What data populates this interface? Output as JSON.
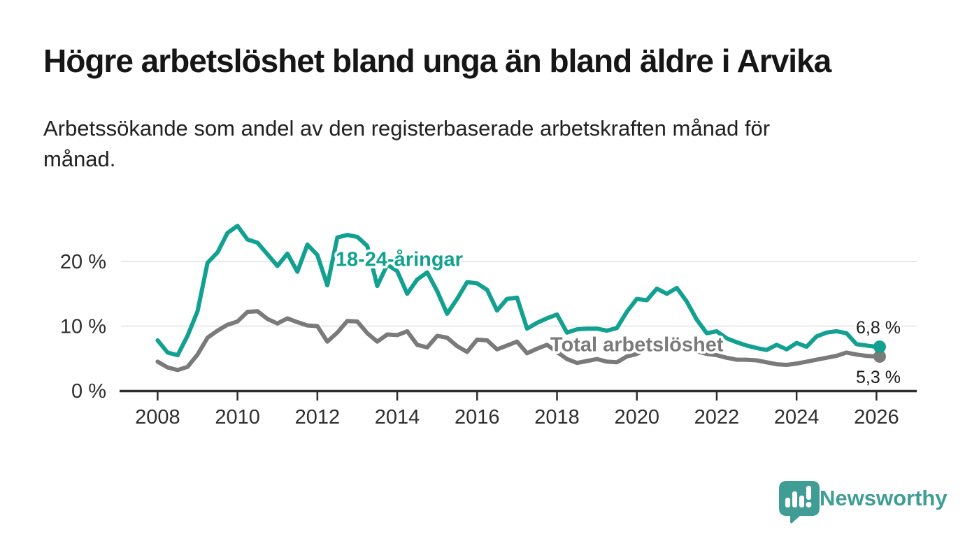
{
  "chart_data": {
    "type": "line",
    "title": "Högre arbetslöshet bland unga än bland äldre i Arvika",
    "subtitle_lines": [
      "Arbetssökande som andel av den registerbaserade arbetskraften månad för",
      "månad."
    ],
    "unit": "%",
    "x": {
      "start": 2008,
      "step": 0.25
    },
    "xlim": [
      2007.9,
      2027.0
    ],
    "ylim": [
      0,
      27
    ],
    "grid": "horizontal",
    "x_ticks": [
      {
        "value": 2008,
        "label": "2008"
      },
      {
        "value": 2010,
        "label": "2010"
      },
      {
        "value": 2012,
        "label": "2012"
      },
      {
        "value": 2014,
        "label": "2014"
      },
      {
        "value": 2016,
        "label": "2016"
      },
      {
        "value": 2018,
        "label": "2018"
      },
      {
        "value": 2020,
        "label": "2020"
      },
      {
        "value": 2022,
        "label": "2022"
      },
      {
        "value": 2024,
        "label": "2024"
      },
      {
        "value": 2026,
        "label": "2026"
      }
    ],
    "y_ticks": [
      {
        "value": 0,
        "label": "0 %"
      },
      {
        "value": 10,
        "label": "10 %"
      },
      {
        "value": 20,
        "label": "20 %"
      }
    ],
    "series": [
      {
        "name": "Total arbetslöshet",
        "color": "#7a7a7a",
        "end_t": 2026.08,
        "end_value": 5.3,
        "end_label": "5,3 %",
        "values": [
          4.5,
          3.6,
          3.2,
          3.7,
          5.6,
          8.2,
          9.3,
          10.2,
          10.7,
          12.2,
          12.3,
          11.1,
          10.4,
          11.2,
          10.6,
          10.1,
          10.0,
          7.6,
          9.0,
          10.8,
          10.7,
          8.9,
          7.6,
          8.7,
          8.6,
          9.2,
          7.1,
          6.7,
          8.5,
          8.2,
          6.9,
          6.0,
          7.9,
          7.8,
          6.4,
          7.0,
          7.6,
          5.8,
          6.5,
          7.1,
          6.0,
          4.9,
          4.3,
          4.6,
          4.9,
          4.5,
          4.4,
          5.3,
          5.7,
          6.5,
          7.1,
          7.0,
          6.9,
          6.6,
          6.1,
          5.7,
          5.5,
          5.1,
          4.8,
          4.8,
          4.7,
          4.4,
          4.1,
          4.0,
          4.2,
          4.5,
          4.8,
          5.1,
          5.4,
          5.9,
          5.6,
          5.4,
          5.3
        ]
      },
      {
        "name": "18-24-åringar",
        "color": "#12a190",
        "end_t": 2026.08,
        "end_value": 6.8,
        "end_label": "6,8 %",
        "values": [
          7.8,
          5.9,
          5.5,
          8.5,
          12.3,
          19.8,
          21.4,
          24.4,
          25.5,
          23.4,
          22.9,
          21.1,
          19.3,
          21.2,
          18.4,
          22.6,
          21.0,
          16.3,
          23.7,
          24.1,
          23.8,
          22.4,
          16.2,
          19.5,
          18.5,
          15.0,
          17.2,
          18.3,
          15.4,
          11.9,
          14.2,
          16.8,
          16.6,
          15.6,
          12.4,
          14.2,
          14.4,
          9.6,
          10.5,
          11.2,
          11.8,
          9.0,
          9.5,
          9.6,
          9.6,
          9.3,
          9.7,
          12.2,
          14.2,
          14.0,
          15.8,
          15.0,
          15.9,
          13.8,
          11.0,
          8.9,
          9.2,
          8.1,
          7.5,
          7.0,
          6.6,
          6.3,
          7.1,
          6.4,
          7.4,
          6.8,
          8.4,
          9.0,
          9.2,
          8.9,
          7.2,
          7.0,
          6.8
        ]
      }
    ],
    "colors": {
      "grid": "#e2e2e2",
      "axis": "#2d2d2d",
      "tick_label": "#2f2f2f",
      "value_label": "#1b1b1b"
    },
    "legend_position": "inline-labels"
  },
  "footer": {
    "brand": "Newsworthy",
    "brand_color": "#3f9d95",
    "logo_icon": "bar-chart-speech-bubble"
  }
}
